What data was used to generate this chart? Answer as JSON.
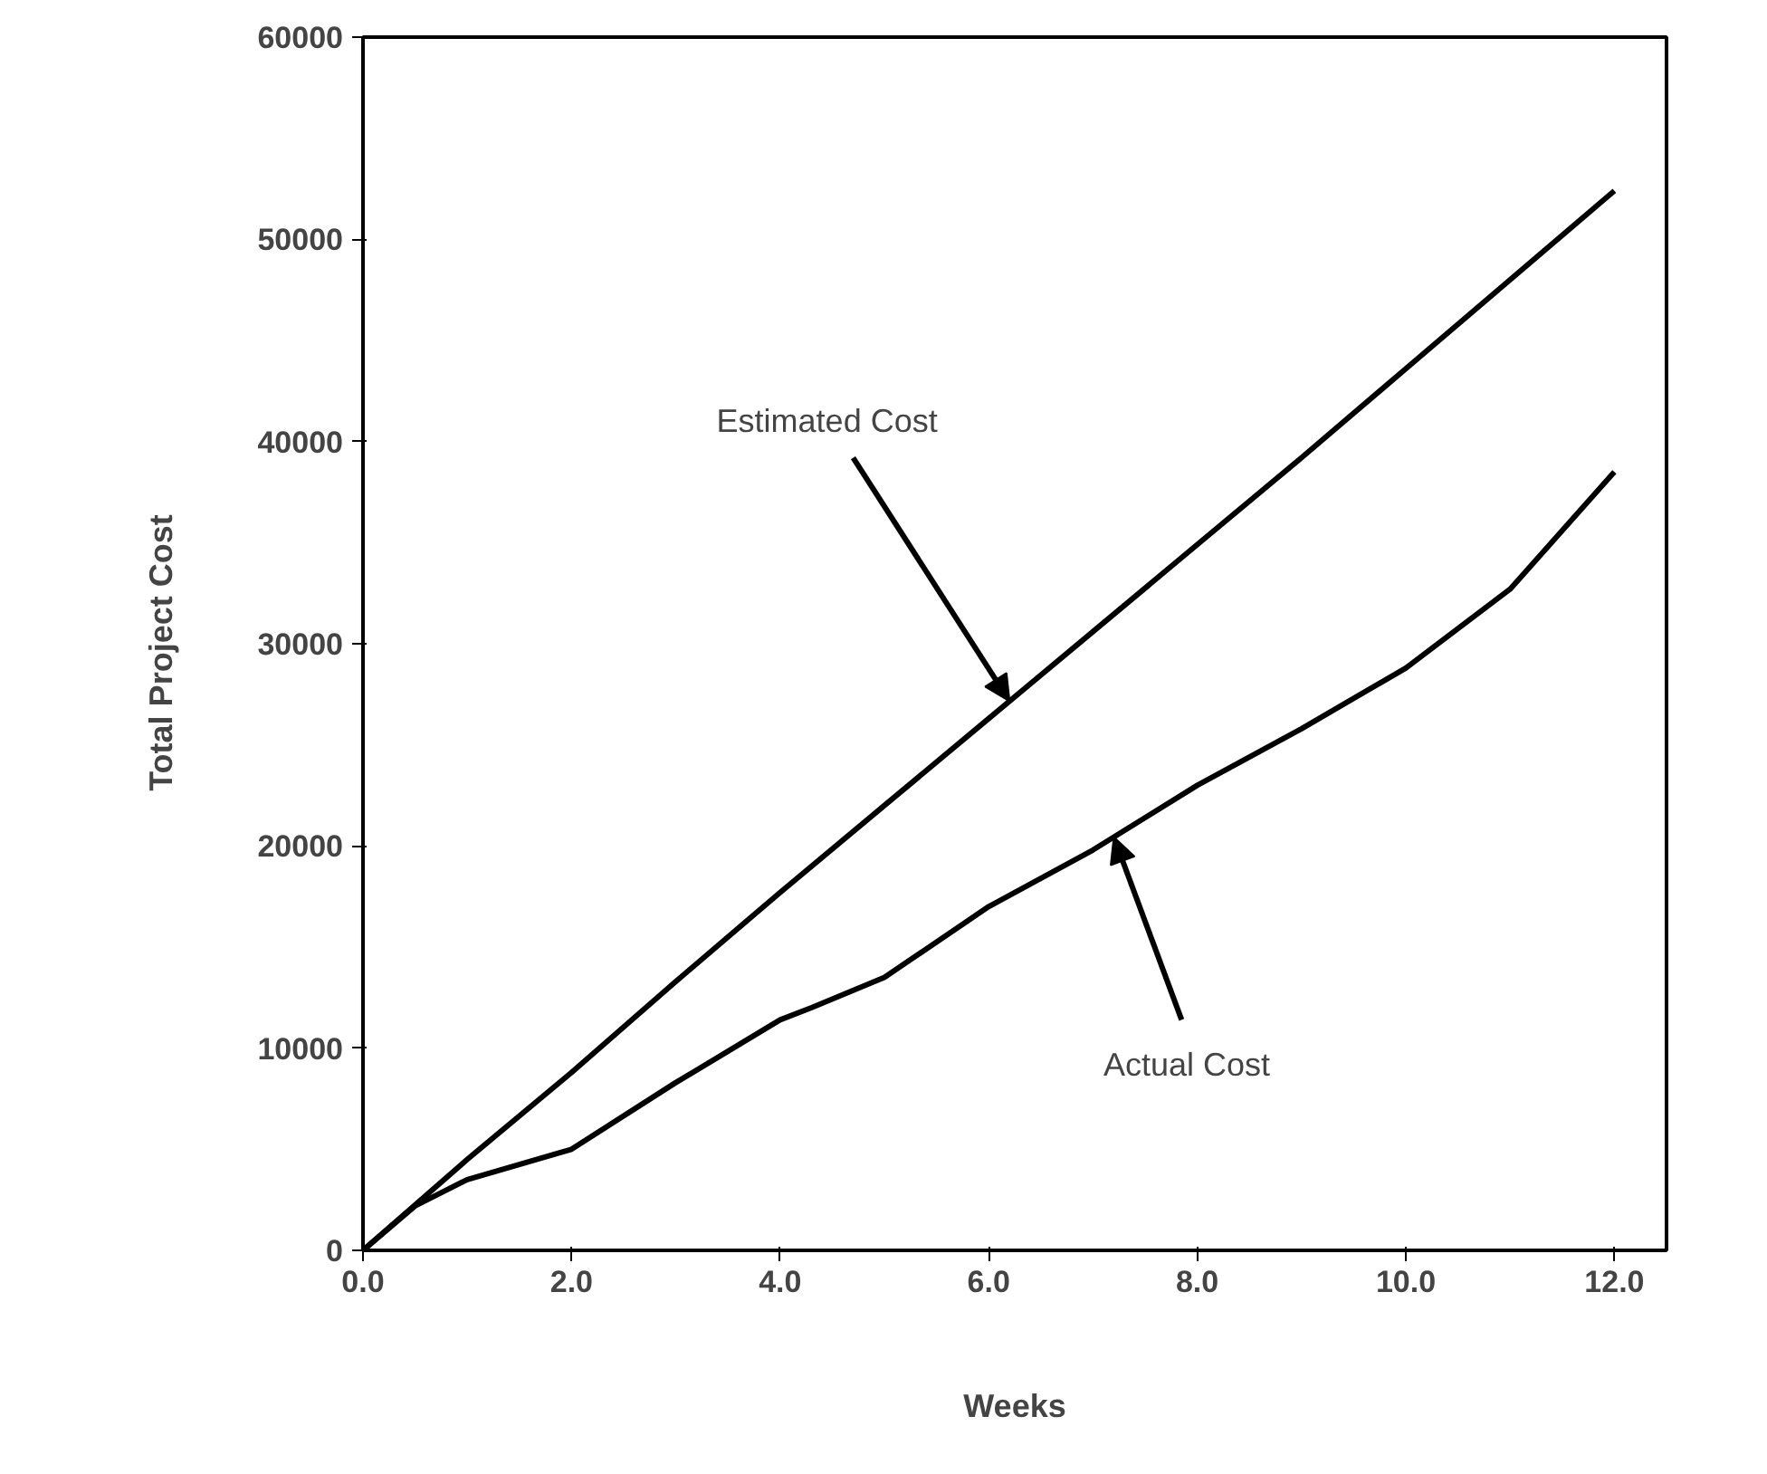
{
  "chart_data": {
    "type": "line",
    "xlabel": "Weeks",
    "ylabel": "Total  Project  Cost",
    "xlim": [
      0,
      12.5
    ],
    "ylim": [
      0,
      60000
    ],
    "xticks": [
      {
        "value": 0,
        "label": "0.0"
      },
      {
        "value": 2,
        "label": "2.0"
      },
      {
        "value": 4,
        "label": "4.0"
      },
      {
        "value": 6,
        "label": "6.0"
      },
      {
        "value": 8,
        "label": "8.0"
      },
      {
        "value": 10,
        "label": "10.0"
      },
      {
        "value": 12,
        "label": "12.0"
      }
    ],
    "yticks": [
      0,
      10000,
      20000,
      30000,
      40000,
      50000,
      60000
    ],
    "grid": false,
    "marker": "none",
    "line_style": "solid",
    "series": [
      {
        "color": "#000000",
        "x": [
          0,
          1,
          2,
          3,
          4,
          5,
          6,
          7,
          8,
          9,
          10,
          11,
          12
        ],
        "values": [
          0,
          4500,
          8800,
          13300,
          17700,
          22000,
          26300,
          30600,
          34900,
          39200,
          43600,
          48000,
          52400
        ]
      },
      {
        "color": "#000000",
        "x": [
          0,
          0.5,
          1,
          2,
          3,
          4,
          4.3,
          5,
          6,
          7,
          8,
          9,
          10,
          11,
          12
        ],
        "values": [
          0,
          2200,
          3500,
          5000,
          8300,
          11400,
          12000,
          13500,
          17000,
          19800,
          23000,
          25800,
          28800,
          32700,
          38500
        ]
      }
    ],
    "annotations": [
      {
        "text": "Estimated Cost",
        "x": 6.2,
        "y": 27160
      },
      {
        "text": "Actual Cost",
        "x": 7.2,
        "y": 20440
      }
    ]
  }
}
